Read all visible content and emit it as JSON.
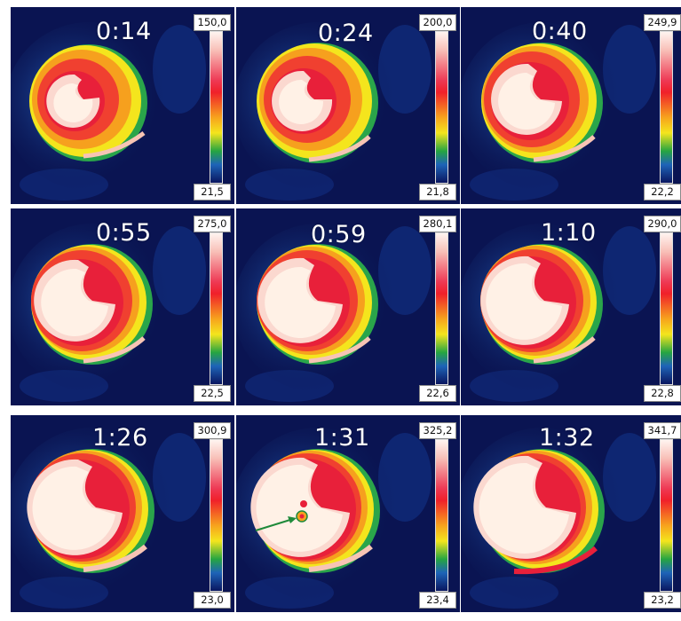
{
  "panels": [
    {
      "time": "0:14",
      "scale_max": "150,0",
      "scale_min": "21,5"
    },
    {
      "time": "0:24",
      "scale_max": "200,0",
      "scale_min": "21,8"
    },
    {
      "time": "0:40",
      "scale_max": "249,9",
      "scale_min": "22,2"
    },
    {
      "time": "0:55",
      "scale_max": "275,0",
      "scale_min": "22,5"
    },
    {
      "time": "0:59",
      "scale_max": "280,1",
      "scale_min": "22,6"
    },
    {
      "time": "1:10",
      "scale_max": "290,0",
      "scale_min": "22,8"
    },
    {
      "time": "1:26",
      "scale_max": "300,9",
      "scale_min": "23,0"
    },
    {
      "time": "1:31",
      "scale_max": "325,2",
      "scale_min": "23,4"
    },
    {
      "time": "1:32",
      "scale_max": "341,7",
      "scale_min": "23,2"
    }
  ],
  "colors": {
    "background_dark": "#08124a",
    "hot_core": "#fff1e6",
    "red_ring": "#e8203a",
    "yellow": "#f4e51d",
    "green": "#26a541",
    "arrow": "#1f8a3a"
  }
}
